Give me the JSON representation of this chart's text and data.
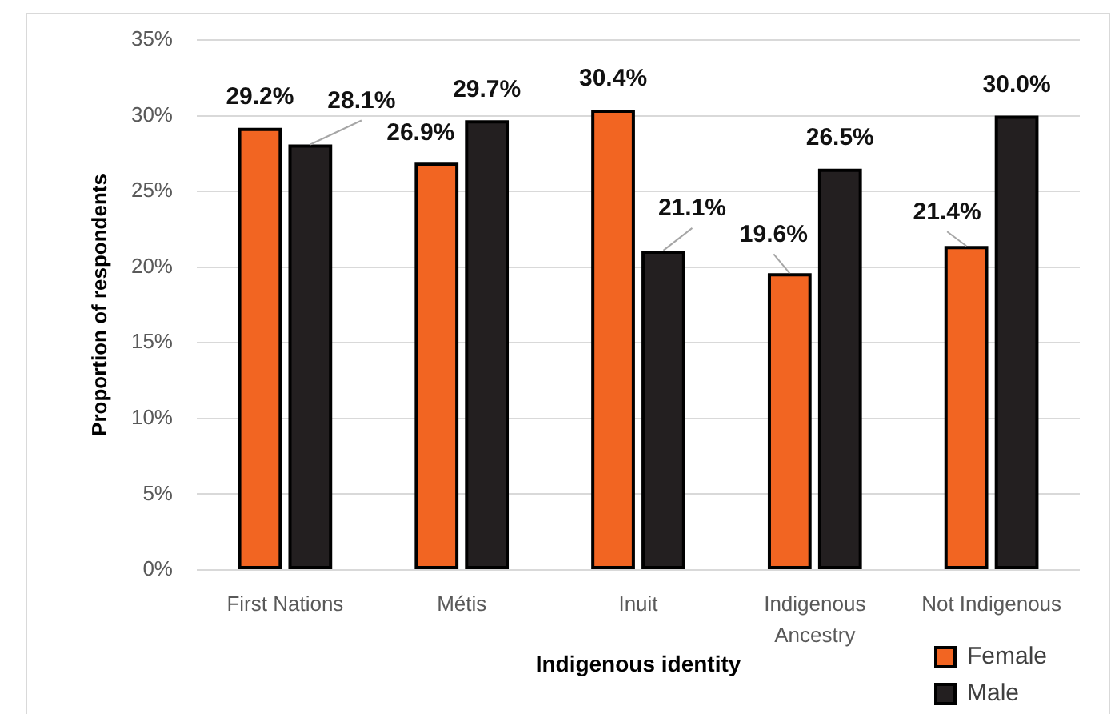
{
  "chart_data": {
    "type": "bar",
    "xlabel": "Indigenous identity",
    "ylabel": "Proportion of respondents",
    "categories": [
      "First Nations",
      "Métis",
      "Inuit",
      "Indigenous Ancestry",
      "Not Indigenous"
    ],
    "series": [
      {
        "name": "Female",
        "color": "#f26522",
        "values": [
          29.2,
          26.9,
          30.4,
          19.6,
          21.4
        ],
        "value_labels": [
          "29.2%",
          "26.9%",
          "30.4%",
          "19.6%",
          "21.4%"
        ]
      },
      {
        "name": "Male",
        "color": "#231f20",
        "values": [
          28.1,
          29.7,
          21.1,
          26.5,
          30.0
        ],
        "value_labels": [
          "28.1%",
          "29.7%",
          "21.1%",
          "26.5%",
          "30.0%"
        ]
      }
    ],
    "ylim": [
      0,
      35
    ],
    "yticks": [
      {
        "value": 0,
        "label": "0%"
      },
      {
        "value": 5,
        "label": "5%"
      },
      {
        "value": 10,
        "label": "10%"
      },
      {
        "value": 15,
        "label": "15%"
      },
      {
        "value": 20,
        "label": "20%"
      },
      {
        "value": 25,
        "label": "25%"
      },
      {
        "value": 30,
        "label": "30%"
      },
      {
        "value": 35,
        "label": "35%"
      }
    ],
    "grid": "y",
    "legend": "bottom right"
  }
}
